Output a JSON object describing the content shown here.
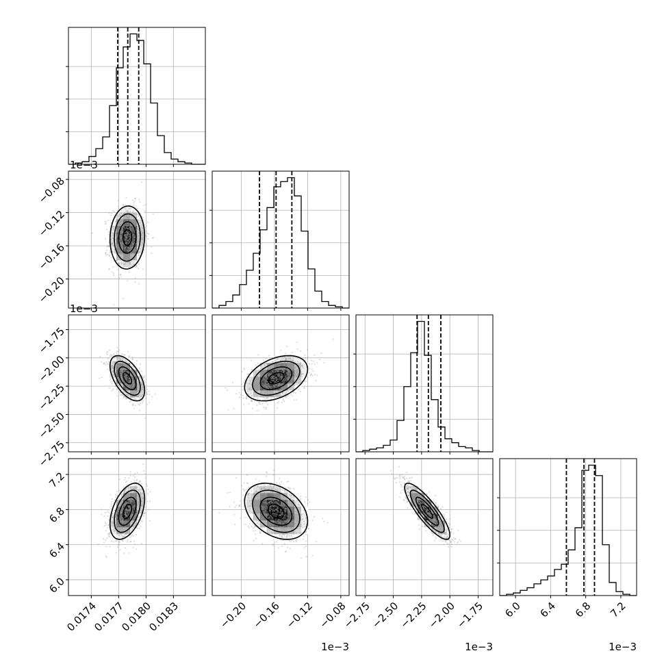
{
  "chart_data": {
    "type": "corner",
    "grid": true,
    "bins": 20,
    "parameters": [
      {
        "range": [
          0.01715,
          0.01865
        ],
        "ticks": [
          0.0174,
          0.0177,
          0.018,
          0.0183
        ],
        "tick_labels": [
          "0.0174",
          "0.0177",
          "0.0180",
          "0.0183"
        ],
        "offset_text": "",
        "quantiles": [
          0.01769,
          0.0178,
          0.01792
        ],
        "hist_ticks": [
          0.25,
          0.5,
          0.75
        ],
        "hist": [
          0.0,
          0.01,
          0.02,
          0.06,
          0.12,
          0.21,
          0.45,
          0.74,
          0.9,
          1.0,
          0.95,
          0.77,
          0.47,
          0.22,
          0.09,
          0.04,
          0.02,
          0.01,
          0.0,
          0.0
        ]
      },
      {
        "range": [
          -0.235,
          -0.07
        ],
        "ticks": [
          -0.2,
          -0.16,
          -0.12,
          -0.08
        ],
        "tick_labels": [
          "−0.20",
          "−0.16",
          "−0.12",
          "−0.08"
        ],
        "offset_text": "1e−3",
        "quantiles": [
          -0.178,
          -0.158,
          -0.139
        ],
        "hist_ticks": [
          0.25,
          0.5,
          0.75
        ],
        "hist": [
          0.0,
          0.02,
          0.05,
          0.1,
          0.18,
          0.29,
          0.42,
          0.6,
          0.77,
          0.93,
          0.97,
          1.0,
          0.86,
          0.59,
          0.3,
          0.13,
          0.05,
          0.02,
          0.01,
          0.0
        ]
      },
      {
        "range": [
          -2.83,
          -1.62
        ],
        "ticks": [
          -2.75,
          -2.5,
          -2.25,
          -2.0,
          -1.75
        ],
        "tick_labels": [
          "−2.75",
          "−2.50",
          "−2.25",
          "−2.00",
          "−1.75"
        ],
        "offset_text": "1e−3",
        "quantiles": [
          -2.29,
          -2.19,
          -2.08
        ],
        "hist_ticks": [
          0.25,
          0.5,
          0.75
        ],
        "hist": [
          0.0,
          0.01,
          0.02,
          0.03,
          0.05,
          0.09,
          0.24,
          0.5,
          0.76,
          1.0,
          0.74,
          0.4,
          0.19,
          0.1,
          0.07,
          0.04,
          0.03,
          0.01,
          0.0,
          0.0
        ]
      },
      {
        "range": [
          5.82,
          7.38
        ],
        "ticks": [
          6.0,
          6.4,
          6.8,
          7.2
        ],
        "tick_labels": [
          "6.0",
          "6.4",
          "6.8",
          "7.2"
        ],
        "offset_text": "1e−3",
        "quantiles": [
          6.58,
          6.78,
          6.9
        ],
        "hist_ticks": [
          0.25,
          0.5,
          0.75
        ],
        "hist": [
          0.0,
          0.01,
          0.02,
          0.04,
          0.06,
          0.09,
          0.12,
          0.15,
          0.2,
          0.24,
          0.35,
          0.52,
          0.96,
          1.0,
          0.92,
          0.39,
          0.1,
          0.03,
          0.01,
          0.0
        ]
      }
    ],
    "pairs": [
      {
        "row": 1,
        "col": 0,
        "mean": [
          0.017795,
          -0.15
        ],
        "sd": [
          9.5e-05,
          0.019
        ],
        "corr": 0.05
      },
      {
        "row": 2,
        "col": 0,
        "mean": [
          0.017795,
          -2.18
        ],
        "sd": [
          9.5e-05,
          0.1
        ],
        "corr": -0.55
      },
      {
        "row": 2,
        "col": 1,
        "mean": [
          -0.158,
          -2.18
        ],
        "sd": [
          0.019,
          0.1
        ],
        "corr": 0.4
      },
      {
        "row": 3,
        "col": 0,
        "mean": [
          0.017795,
          6.78
        ],
        "sd": [
          9.5e-05,
          0.16
        ],
        "corr": 0.45
      },
      {
        "row": 3,
        "col": 1,
        "mean": [
          -0.158,
          6.78
        ],
        "sd": [
          0.019,
          0.16
        ],
        "corr": -0.35
      },
      {
        "row": 3,
        "col": 2,
        "mean": [
          -2.2,
          6.78
        ],
        "sd": [
          0.1,
          0.16
        ],
        "corr": -0.85
      }
    ]
  }
}
